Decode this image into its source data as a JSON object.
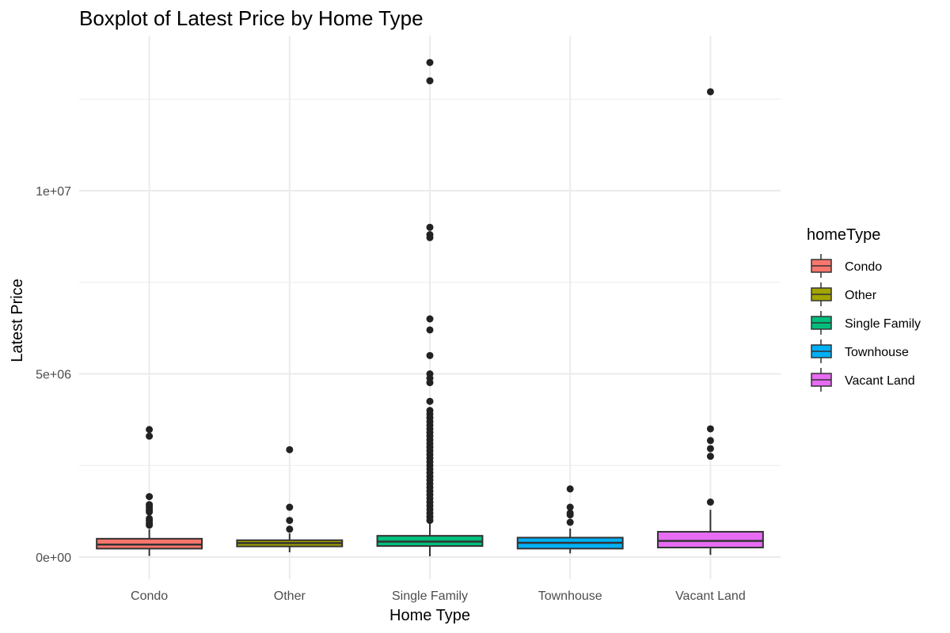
{
  "chart_data": {
    "type": "boxplot",
    "title": "Boxplot of Latest Price by Home Type",
    "xlabel": "Home Type",
    "ylabel": "Latest Price",
    "categories": [
      "Condo",
      "Other",
      "Single Family",
      "Townhouse",
      "Vacant Land"
    ],
    "ylim": [
      -600000,
      14000000
    ],
    "yticks": [
      {
        "value": 0,
        "label": "0e+00"
      },
      {
        "value": 5000000,
        "label": "5e+06"
      },
      {
        "value": 10000000,
        "label": "1e+07"
      }
    ],
    "grid": true,
    "legend": {
      "title": "homeType",
      "placement": "right",
      "entries": [
        "Condo",
        "Other",
        "Single Family",
        "Townhouse",
        "Vacant Land"
      ]
    },
    "colors": {
      "Condo": "#f8766d",
      "Other": "#a3a500",
      "Single Family": "#00bf7d",
      "Townhouse": "#00b0f6",
      "Vacant Land": "#e76bf3",
      "outline": "#333333",
      "outlier": "#222222",
      "grid": "#ebebeb"
    },
    "series": [
      {
        "category": "Condo",
        "whisker_low": 30000,
        "q1": 230000,
        "median": 340000,
        "q3": 500000,
        "whisker_high": 760000,
        "outliers": [
          3480000,
          3300000,
          1650000,
          1430000,
          1360000,
          1290000,
          1230000,
          1050000,
          990000,
          920000,
          870000
        ]
      },
      {
        "category": "Other",
        "whisker_low": 130000,
        "q1": 290000,
        "median": 380000,
        "q3": 460000,
        "whisker_high": 650000,
        "outliers": [
          2930000,
          1360000,
          1000000,
          760000
        ]
      },
      {
        "category": "Single Family",
        "whisker_low": 20000,
        "q1": 300000,
        "median": 420000,
        "q3": 580000,
        "whisker_high": 930000,
        "outliers": [
          13500000,
          13000000,
          9000000,
          8800000,
          8720000,
          6500000,
          6200000,
          5500000,
          5000000,
          4880000,
          4760000,
          4250000,
          4000000,
          3900000,
          3800000,
          3700000,
          3600000,
          3500000,
          3400000,
          3300000,
          3200000,
          3100000,
          3000000,
          2900000,
          2800000,
          2700000,
          2600000,
          2500000,
          2400000,
          2300000,
          2200000,
          2100000,
          2000000,
          1900000,
          1800000,
          1700000,
          1600000,
          1500000,
          1400000,
          1300000,
          1200000,
          1100000,
          1000000
        ]
      },
      {
        "category": "Townhouse",
        "whisker_low": 100000,
        "q1": 230000,
        "median": 390000,
        "q3": 530000,
        "whisker_high": 780000,
        "outliers": [
          1860000,
          1360000,
          1200000,
          1150000,
          950000
        ]
      },
      {
        "category": "Vacant Land",
        "whisker_low": 60000,
        "q1": 260000,
        "median": 440000,
        "q3": 690000,
        "whisker_high": 1290000,
        "outliers": [
          12700000,
          3500000,
          3180000,
          2960000,
          2750000,
          1500000
        ]
      }
    ]
  }
}
